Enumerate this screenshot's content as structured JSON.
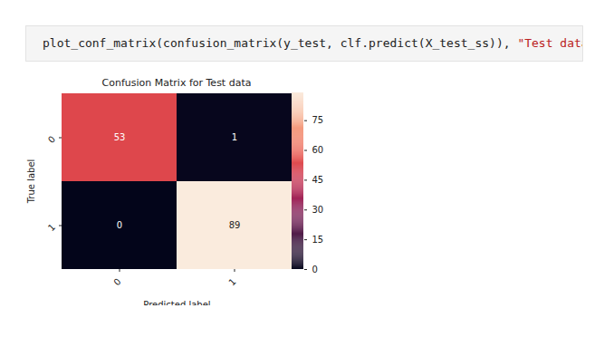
{
  "code": "plot_conf_matrix(confusion_matrix(y_test, clf.predict(X_test_ss)), \"Test data\")",
  "chart_data": {
    "type": "heatmap",
    "title": "Confusion Matrix for Test data",
    "x_label": "Predicted label",
    "y_label": "True label",
    "x_categories": [
      "0",
      "1"
    ],
    "y_categories": [
      "0",
      "1"
    ],
    "cells": [
      [
        53,
        1
      ],
      [
        0,
        89
      ]
    ],
    "data_labels": true,
    "color": "rocket",
    "colorbar": {
      "range": [
        0,
        89
      ],
      "ticks": [
        0,
        15,
        30,
        45,
        60,
        75
      ]
    }
  }
}
